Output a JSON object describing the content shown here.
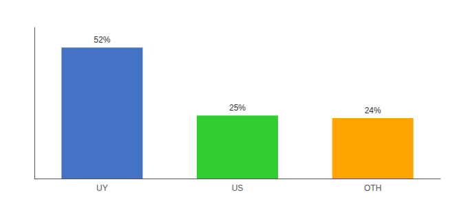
{
  "chart_data": {
    "type": "bar",
    "categories": [
      "UY",
      "US",
      "OTH"
    ],
    "values": [
      52,
      25,
      24
    ],
    "value_labels": [
      "52%",
      "25%",
      "24%"
    ],
    "colors": [
      "#4472C4",
      "#33CC33",
      "#FFA500"
    ],
    "ylim": [
      0,
      60
    ],
    "tick_labels": "x",
    "grid": false,
    "data_labels": true
  }
}
